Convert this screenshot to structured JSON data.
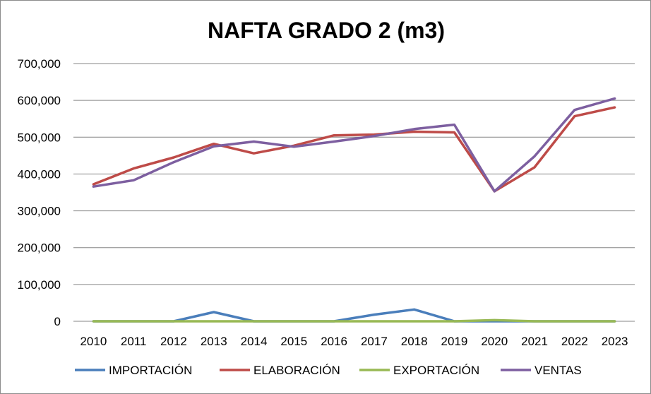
{
  "chart_data": {
    "type": "line",
    "title": "NAFTA GRADO 2 (m3)",
    "xlabel": "",
    "ylabel": "",
    "x": [
      "2010",
      "2011",
      "2012",
      "2013",
      "2014",
      "2015",
      "2016",
      "2017",
      "2018",
      "2019",
      "2020",
      "2021",
      "2022",
      "2023"
    ],
    "ylim": [
      0,
      700000
    ],
    "yticks": [
      0,
      100000,
      200000,
      300000,
      400000,
      500000,
      600000,
      700000
    ],
    "ytick_labels": [
      "0",
      "100,000",
      "200,000",
      "300,000",
      "400,000",
      "500,000",
      "600,000",
      "700,000"
    ],
    "grid": true,
    "legend_position": "bottom",
    "series": [
      {
        "name": "IMPORTACIÓN",
        "color": "#4a7ebb",
        "values": [
          0,
          0,
          0,
          25000,
          0,
          0,
          0,
          18000,
          32000,
          0,
          0,
          0,
          0,
          0
        ]
      },
      {
        "name": "ELABORACIÓN",
        "color": "#be4b48",
        "values": [
          372000,
          415000,
          445000,
          482000,
          456000,
          477000,
          505000,
          507000,
          515000,
          513000,
          353000,
          418000,
          557000,
          581000
        ]
      },
      {
        "name": "EXPORTACIÓN",
        "color": "#98b954",
        "values": [
          0,
          0,
          0,
          0,
          0,
          0,
          0,
          0,
          0,
          0,
          3000,
          0,
          0,
          0
        ]
      },
      {
        "name": "VENTAS",
        "color": "#7d5fa0",
        "values": [
          366000,
          383000,
          432000,
          475000,
          488000,
          474000,
          488000,
          503000,
          522000,
          534000,
          353000,
          448000,
          574000,
          605000
        ]
      }
    ]
  }
}
